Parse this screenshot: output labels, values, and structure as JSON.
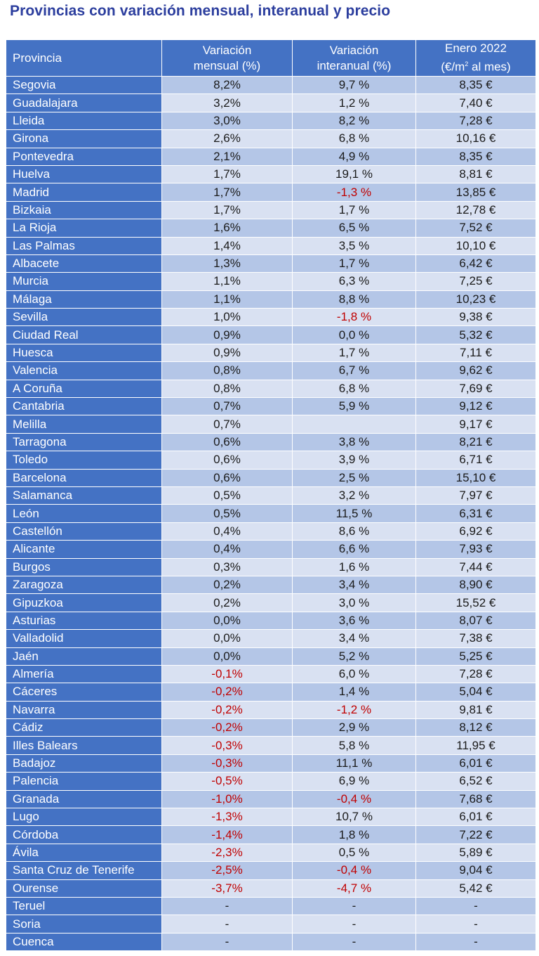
{
  "title": "Provincias con variación mensual, interanual y precio",
  "headers": {
    "provincia": "Provincia",
    "mensual_1": "Variación",
    "mensual_2": "mensual (%)",
    "interanual_1": "Variación",
    "interanual_2": "interanual (%)",
    "precio_1": "Enero 2022",
    "precio_2a": "(€/m",
    "precio_sup": "2",
    "precio_2b": " al mes)"
  },
  "rows": [
    {
      "provincia": "Segovia",
      "mensual": "8,2%",
      "interanual": "9,7 %",
      "precio": "8,35 €"
    },
    {
      "provincia": "Guadalajara",
      "mensual": "3,2%",
      "interanual": "1,2 %",
      "precio": "7,40 €"
    },
    {
      "provincia": "Lleida",
      "mensual": "3,0%",
      "interanual": "8,2 %",
      "precio": "7,28 €"
    },
    {
      "provincia": "Girona",
      "mensual": "2,6%",
      "interanual": "6,8 %",
      "precio": "10,16 €"
    },
    {
      "provincia": "Pontevedra",
      "mensual": "2,1%",
      "interanual": "4,9 %",
      "precio": "8,35 €"
    },
    {
      "provincia": "Huelva",
      "mensual": "1,7%",
      "interanual": "19,1 %",
      "precio": "8,81 €"
    },
    {
      "provincia": "Madrid",
      "mensual": "1,7%",
      "interanual": "-1,3 %",
      "precio": "13,85 €"
    },
    {
      "provincia": "Bizkaia",
      "mensual": "1,7%",
      "interanual": "1,7 %",
      "precio": "12,78 €"
    },
    {
      "provincia": "La Rioja",
      "mensual": "1,6%",
      "interanual": "6,5 %",
      "precio": "7,52 €"
    },
    {
      "provincia": "Las Palmas",
      "mensual": "1,4%",
      "interanual": "3,5 %",
      "precio": "10,10 €"
    },
    {
      "provincia": "Albacete",
      "mensual": "1,3%",
      "interanual": "1,7 %",
      "precio": "6,42 €"
    },
    {
      "provincia": "Murcia",
      "mensual": "1,1%",
      "interanual": "6,3 %",
      "precio": "7,25 €"
    },
    {
      "provincia": "Málaga",
      "mensual": "1,1%",
      "interanual": "8,8 %",
      "precio": "10,23 €"
    },
    {
      "provincia": "Sevilla",
      "mensual": "1,0%",
      "interanual": "-1,8 %",
      "precio": "9,38 €"
    },
    {
      "provincia": "Ciudad Real",
      "mensual": "0,9%",
      "interanual": "0,0 %",
      "precio": "5,32 €"
    },
    {
      "provincia": "Huesca",
      "mensual": "0,9%",
      "interanual": "1,7 %",
      "precio": "7,11 €"
    },
    {
      "provincia": "Valencia",
      "mensual": "0,8%",
      "interanual": "6,7 %",
      "precio": "9,62 €"
    },
    {
      "provincia": "A Coruña",
      "mensual": "0,8%",
      "interanual": "6,8 %",
      "precio": "7,69 €"
    },
    {
      "provincia": "Cantabria",
      "mensual": "0,7%",
      "interanual": "5,9 %",
      "precio": "9,12 €"
    },
    {
      "provincia": "Melilla",
      "mensual": "0,7%",
      "interanual": "",
      "precio": "9,17 €"
    },
    {
      "provincia": "Tarragona",
      "mensual": "0,6%",
      "interanual": "3,8 %",
      "precio": "8,21 €"
    },
    {
      "provincia": "Toledo",
      "mensual": "0,6%",
      "interanual": "3,9 %",
      "precio": "6,71 €"
    },
    {
      "provincia": "Barcelona",
      "mensual": "0,6%",
      "interanual": "2,5 %",
      "precio": "15,10 €"
    },
    {
      "provincia": "Salamanca",
      "mensual": "0,5%",
      "interanual": "3,2 %",
      "precio": "7,97 €"
    },
    {
      "provincia": "León",
      "mensual": "0,5%",
      "interanual": "11,5 %",
      "precio": "6,31 €"
    },
    {
      "provincia": "Castellón",
      "mensual": "0,4%",
      "interanual": "8,6 %",
      "precio": "6,92 €"
    },
    {
      "provincia": "Alicante",
      "mensual": "0,4%",
      "interanual": "6,6 %",
      "precio": "7,93 €"
    },
    {
      "provincia": "Burgos",
      "mensual": "0,3%",
      "interanual": "1,6 %",
      "precio": "7,44 €"
    },
    {
      "provincia": "Zaragoza",
      "mensual": "0,2%",
      "interanual": "3,4 %",
      "precio": "8,90 €"
    },
    {
      "provincia": "Gipuzkoa",
      "mensual": "0,2%",
      "interanual": "3,0 %",
      "precio": "15,52 €"
    },
    {
      "provincia": "Asturias",
      "mensual": "0,0%",
      "interanual": "3,6 %",
      "precio": "8,07 €"
    },
    {
      "provincia": "Valladolid",
      "mensual": "0,0%",
      "interanual": "3,4 %",
      "precio": "7,38 €"
    },
    {
      "provincia": "Jaén",
      "mensual": "0,0%",
      "interanual": "5,2 %",
      "precio": "5,25 €"
    },
    {
      "provincia": "Almería",
      "mensual": "-0,1%",
      "interanual": "6,0 %",
      "precio": "7,28 €"
    },
    {
      "provincia": "Cáceres",
      "mensual": "-0,2%",
      "interanual": "1,4 %",
      "precio": "5,04 €"
    },
    {
      "provincia": "Navarra",
      "mensual": "-0,2%",
      "interanual": "-1,2 %",
      "precio": "9,81 €"
    },
    {
      "provincia": "Cádiz",
      "mensual": "-0,2%",
      "interanual": "2,9 %",
      "precio": "8,12 €"
    },
    {
      "provincia": "Illes Balears",
      "mensual": "-0,3%",
      "interanual": "5,8 %",
      "precio": "11,95 €"
    },
    {
      "provincia": "Badajoz",
      "mensual": "-0,3%",
      "interanual": "11,1 %",
      "precio": "6,01 €"
    },
    {
      "provincia": "Palencia",
      "mensual": "-0,5%",
      "interanual": "6,9 %",
      "precio": "6,52 €"
    },
    {
      "provincia": "Granada",
      "mensual": "-1,0%",
      "interanual": "-0,4 %",
      "precio": "7,68 €"
    },
    {
      "provincia": "Lugo",
      "mensual": "-1,3%",
      "interanual": "10,7 %",
      "precio": "6,01 €"
    },
    {
      "provincia": "Córdoba",
      "mensual": "-1,4%",
      "interanual": "1,8 %",
      "precio": "7,22 €"
    },
    {
      "provincia": "Ávila",
      "mensual": "-2,3%",
      "interanual": "0,5 %",
      "precio": "5,89 €"
    },
    {
      "provincia": "Santa Cruz de Tenerife",
      "mensual": "-2,5%",
      "interanual": "-0,4 %",
      "precio": "9,04 €"
    },
    {
      "provincia": "Ourense",
      "mensual": "-3,7%",
      "interanual": "-4,7 %",
      "precio": "5,42 €"
    },
    {
      "provincia": "Teruel",
      "mensual": "-",
      "interanual": "-",
      "precio": "-"
    },
    {
      "provincia": "Soria",
      "mensual": "-",
      "interanual": "-",
      "precio": "-"
    },
    {
      "provincia": "Cuenca",
      "mensual": "-",
      "interanual": "-",
      "precio": "-"
    }
  ]
}
